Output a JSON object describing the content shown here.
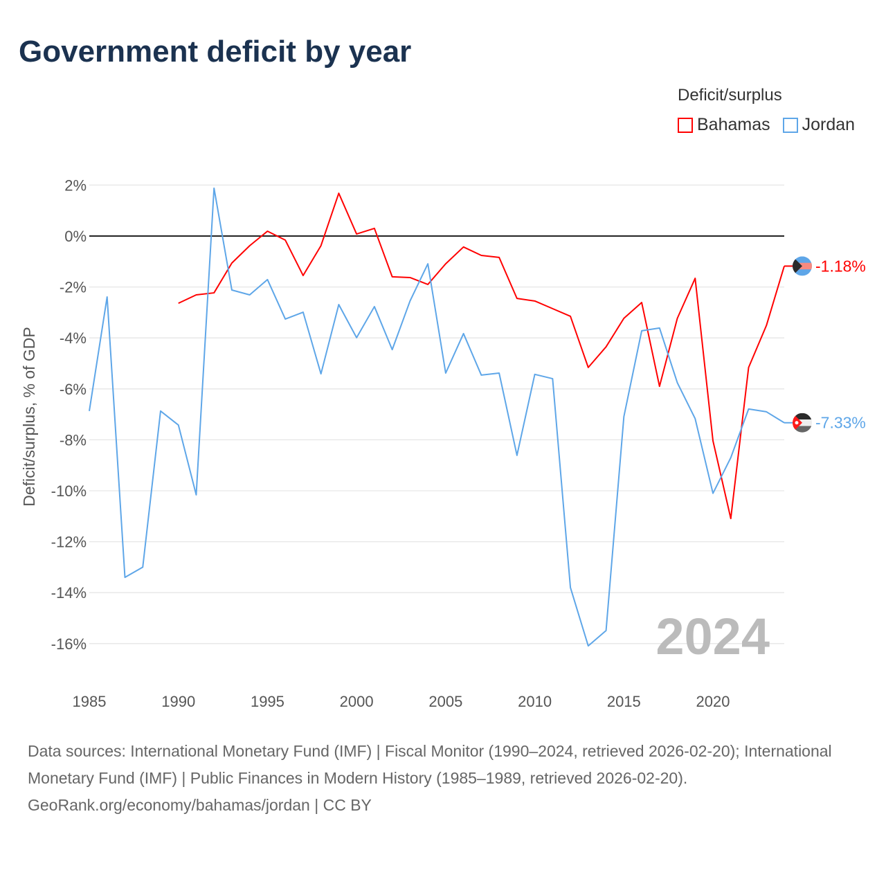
{
  "title": "Government deficit by year",
  "chart_data": {
    "type": "line",
    "title": "Government deficit by year",
    "xlabel": "",
    "ylabel": "Deficit/surplus, % of GDP",
    "legend_title": "Deficit/surplus",
    "legend_position": "top-right",
    "xlim": [
      1985,
      2024
    ],
    "ylim": [
      -17,
      2
    ],
    "x_ticks": [
      1985,
      1990,
      1995,
      2000,
      2005,
      2010,
      2015,
      2020
    ],
    "x_tick_labels": [
      "1985",
      "1990",
      "1995",
      "2000",
      "2005",
      "2010",
      "2015",
      "2020"
    ],
    "y_ticks": [
      2,
      0,
      -2,
      -4,
      -6,
      -8,
      -10,
      -12,
      -14,
      -16
    ],
    "y_tick_labels": [
      "2%",
      "0%",
      "-2%",
      "-4%",
      "-6%",
      "-8%",
      "-10%",
      "-12%",
      "-14%",
      "-16%"
    ],
    "grid": true,
    "year_watermark": "2024",
    "series": [
      {
        "name": "Bahamas",
        "color": "#ff0000",
        "end_label": "-1.18%",
        "x": [
          1990,
          1991,
          1992,
          1993,
          1994,
          1995,
          1996,
          1997,
          1998,
          1999,
          2000,
          2001,
          2002,
          2003,
          2004,
          2005,
          2006,
          2007,
          2008,
          2009,
          2010,
          2011,
          2012,
          2013,
          2014,
          2015,
          2016,
          2017,
          2018,
          2019,
          2020,
          2021,
          2022,
          2023,
          2024
        ],
        "values": [
          -2.64,
          -2.31,
          -2.23,
          -1.06,
          -0.38,
          0.19,
          -0.16,
          -1.55,
          -0.38,
          1.68,
          0.08,
          0.3,
          -1.6,
          -1.63,
          -1.9,
          -1.09,
          -0.43,
          -0.76,
          -0.84,
          -2.45,
          -2.55,
          -2.85,
          -3.15,
          -5.16,
          -4.35,
          -3.23,
          -2.61,
          -5.9,
          -3.23,
          -1.66,
          -8.04,
          -11.09,
          -5.16,
          -3.51,
          -1.18
        ]
      },
      {
        "name": "Jordan",
        "color": "#5ea6e8",
        "end_label": "-7.33%",
        "x": [
          1985,
          1986,
          1987,
          1988,
          1989,
          1990,
          1991,
          1992,
          1993,
          1994,
          1995,
          1996,
          1997,
          1998,
          1999,
          2000,
          2001,
          2002,
          2003,
          2004,
          2005,
          2006,
          2007,
          2008,
          2009,
          2010,
          2011,
          2012,
          2013,
          2014,
          2015,
          2016,
          2017,
          2018,
          2019,
          2020,
          2021,
          2022,
          2023,
          2024
        ],
        "values": [
          -6.87,
          -2.39,
          -13.4,
          -13.0,
          -6.87,
          -7.42,
          -10.16,
          1.88,
          -2.12,
          -2.31,
          -1.71,
          -3.26,
          -2.99,
          -5.41,
          -2.69,
          -3.99,
          -2.77,
          -4.46,
          -2.55,
          -1.09,
          -5.38,
          -3.83,
          -5.46,
          -5.38,
          -8.61,
          -5.43,
          -5.6,
          -13.8,
          -16.09,
          -15.49,
          -7.09,
          -3.72,
          -3.61,
          -5.76,
          -7.17,
          -10.1,
          -8.7,
          -6.79,
          -6.9,
          -7.33
        ]
      }
    ]
  },
  "footer": {
    "sources": "Data sources: International Monetary Fund (IMF) | Fiscal Monitor (1990–2024, retrieved 2026-02-20); International Monetary Fund (IMF) | Public Finances in Modern History (1985–1989, retrieved 2026-02-20).",
    "credit": "GeoRank.org/economy/bahamas/jordan | CC BY"
  }
}
